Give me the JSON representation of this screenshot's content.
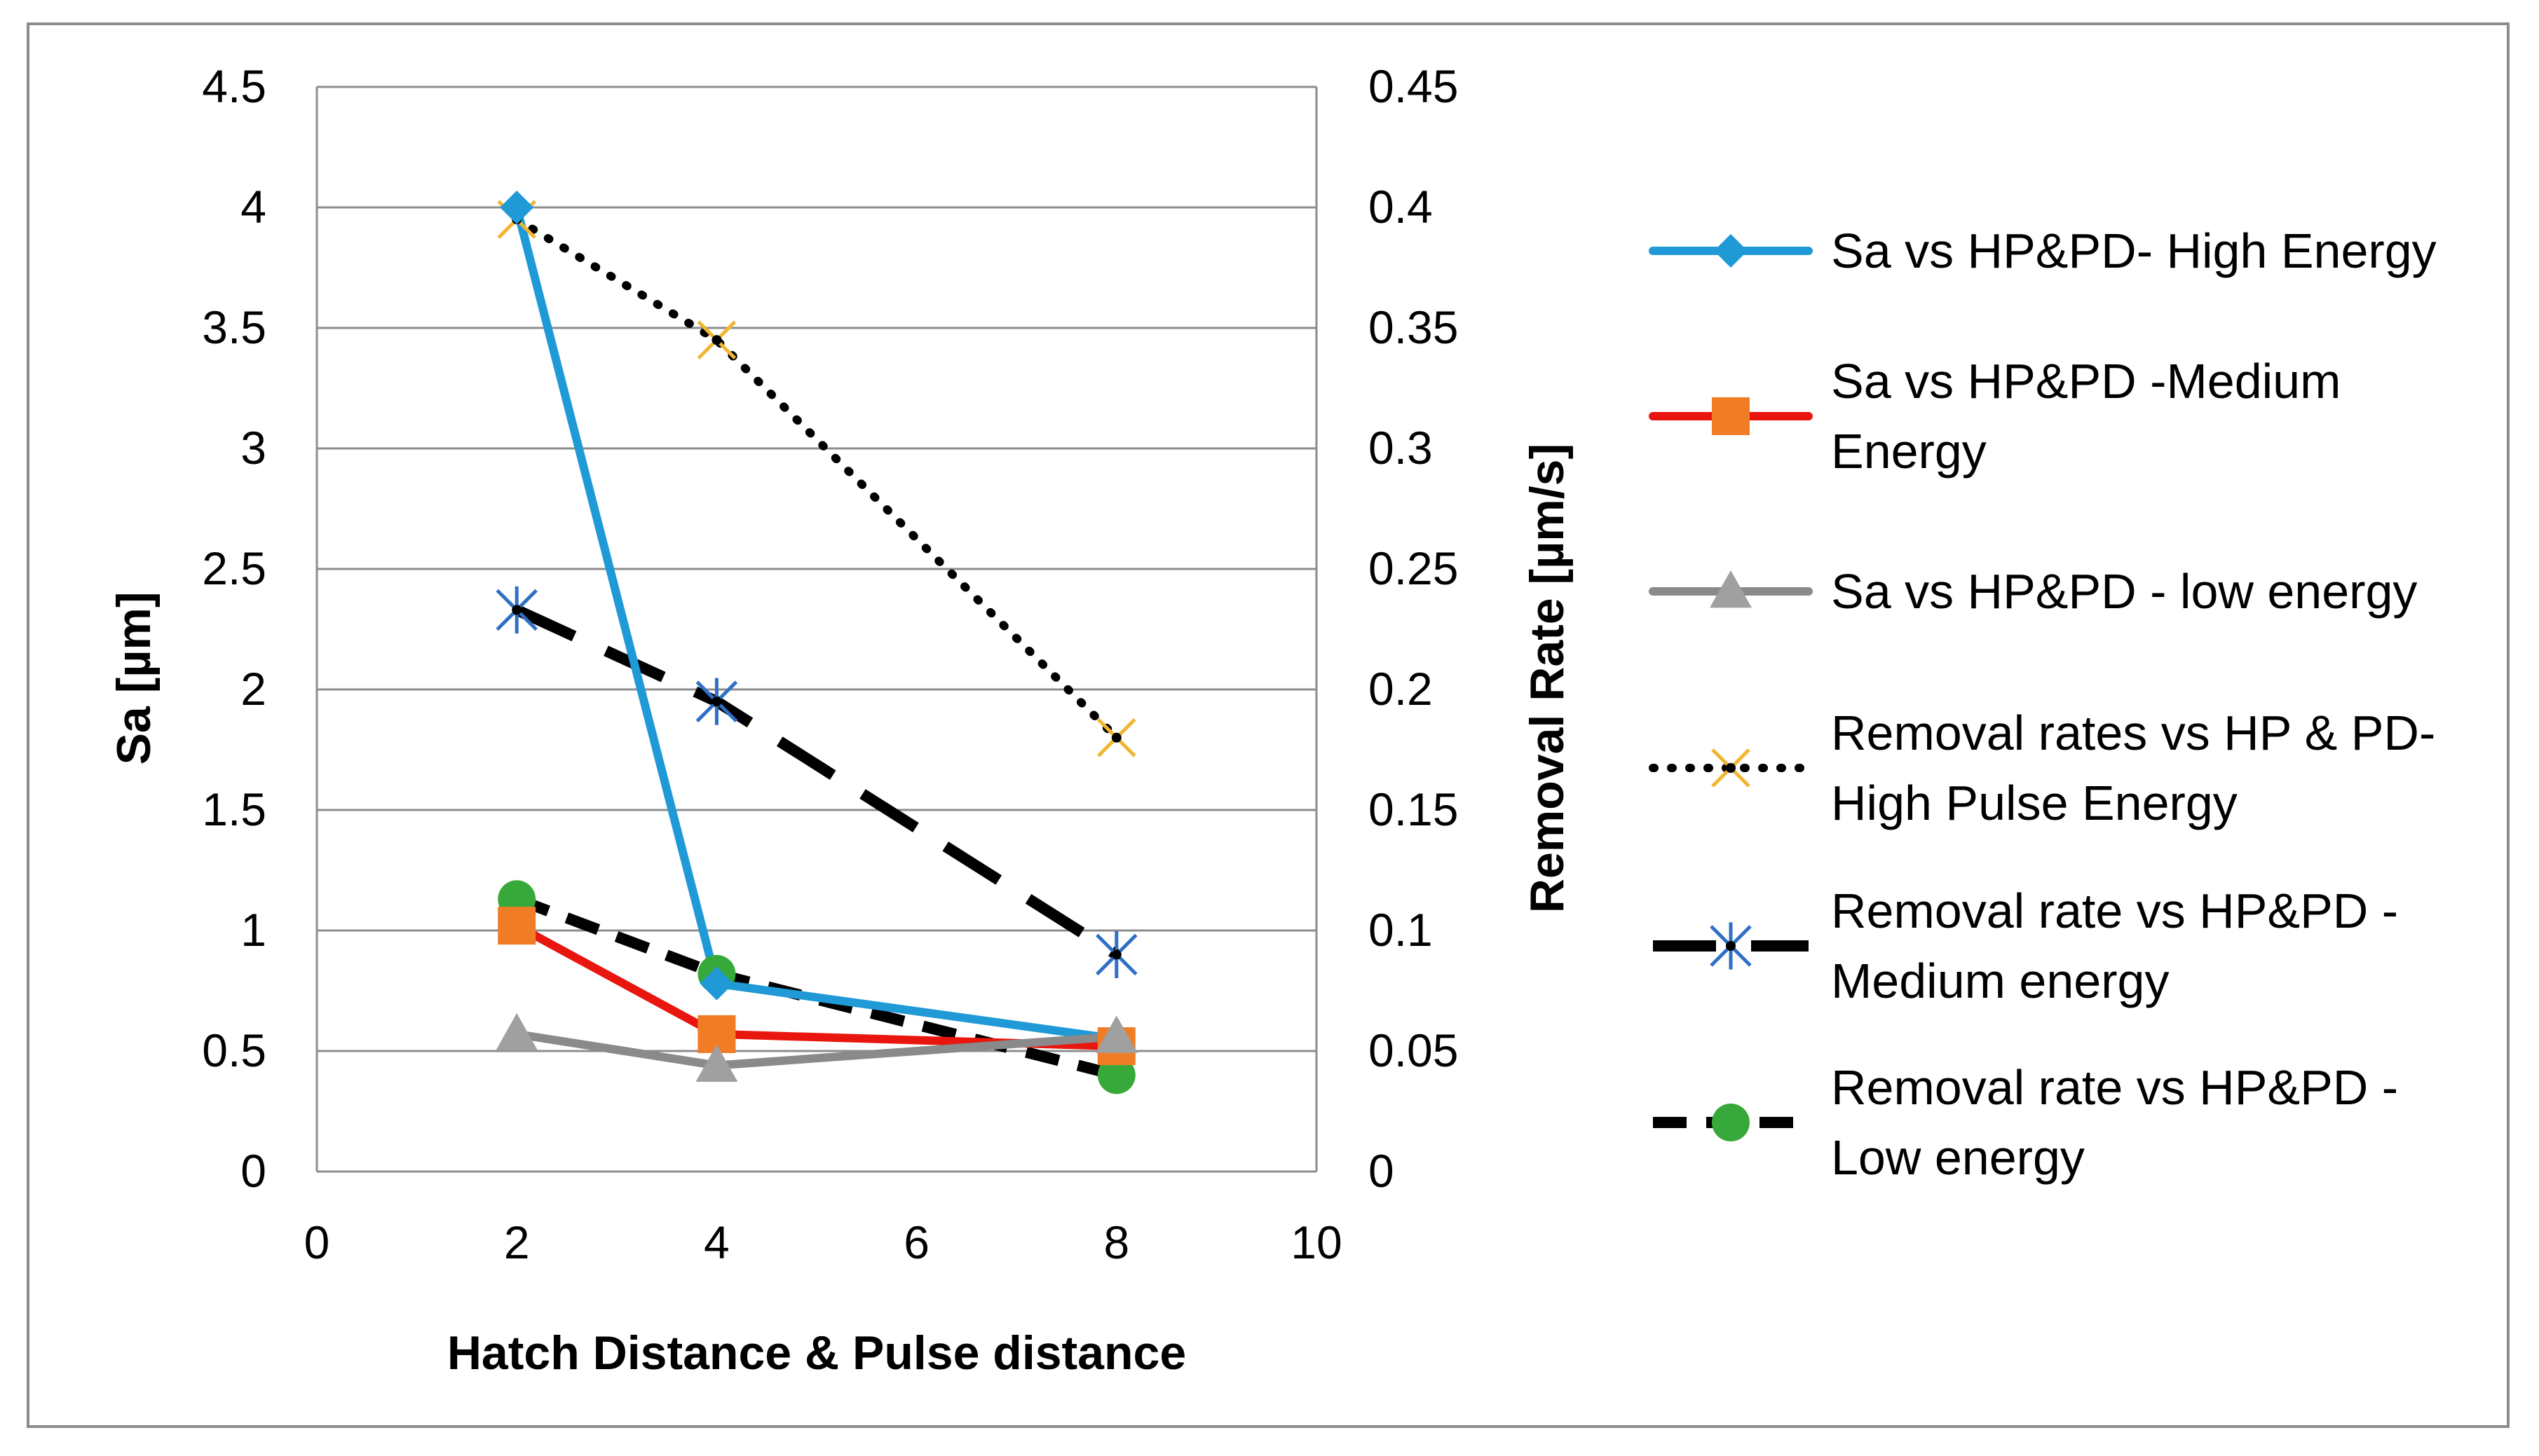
{
  "chart_data": {
    "type": "line",
    "title": "",
    "xlabel": "Hatch Distance & Pulse distance",
    "ylabel": "Sa [µm]",
    "y2label": "Removal Rate [µm/s]",
    "xlim": [
      0,
      10
    ],
    "ylim": [
      0,
      4.5
    ],
    "y2lim": [
      0,
      0.45
    ],
    "x_ticks": [
      "0",
      "2",
      "4",
      "6",
      "8",
      "10"
    ],
    "y_ticks": [
      "0",
      "0.5",
      "1",
      "1.5",
      "2",
      "2.5",
      "3",
      "3.5",
      "4",
      "4.5"
    ],
    "y2_ticks": [
      "0",
      "0.05",
      "0.1",
      "0.15",
      "0.2",
      "0.25",
      "0.3",
      "0.35",
      "0.4",
      "0.45"
    ],
    "grid": true,
    "legend_position": "right",
    "series": [
      {
        "name": "Sa vs HP&PD- High Energy",
        "legend_lines": [
          "Sa vs HP&PD- High Energy"
        ],
        "axis": "primary",
        "x": [
          2,
          4,
          8
        ],
        "values": [
          4.0,
          0.78,
          0.55
        ],
        "color": "#1f9ad6",
        "line_style": "solid",
        "marker": "diamond",
        "marker_color": "#1f9ad6"
      },
      {
        "name": "Sa vs HP&PD -Medium Energy",
        "legend_lines": [
          "Sa vs HP&PD -Medium",
          "Energy"
        ],
        "axis": "primary",
        "x": [
          2,
          4,
          8
        ],
        "values": [
          1.02,
          0.57,
          0.52
        ],
        "color": "#e8160f",
        "line_style": "solid",
        "marker": "square",
        "marker_color": "#f07d26"
      },
      {
        "name": "Sa vs HP&PD - low energy",
        "legend_lines": [
          "Sa vs HP&PD - low energy"
        ],
        "axis": "primary",
        "x": [
          2,
          4,
          8
        ],
        "values": [
          0.57,
          0.44,
          0.56
        ],
        "color": "#8a8a8a",
        "line_style": "solid",
        "marker": "triangle",
        "marker_color": "#a0a0a0"
      },
      {
        "name": "Removal rates vs HP & PD- High Pulse Energy",
        "legend_lines": [
          "Removal rates vs HP & PD-",
          "High Pulse Energy"
        ],
        "axis": "secondary",
        "x": [
          2,
          4,
          8
        ],
        "values": [
          0.395,
          0.345,
          0.18
        ],
        "color": "#000000",
        "line_style": "dotted",
        "marker": "x",
        "marker_color": "#f2b531"
      },
      {
        "name": "Removal rate vs HP&PD - Medium energy",
        "legend_lines": [
          "Removal rate vs HP&PD -",
          "Medium energy"
        ],
        "axis": "secondary",
        "x": [
          2,
          4,
          8
        ],
        "values": [
          0.233,
          0.195,
          0.09
        ],
        "color": "#000000",
        "line_style": "long-dash",
        "marker": "star",
        "marker_color": "#2f6fc4"
      },
      {
        "name": "Removal rate vs HP&PD - Low energy",
        "legend_lines": [
          "Removal rate vs HP&PD -",
          "Low energy"
        ],
        "axis": "secondary",
        "x": [
          2,
          4,
          8
        ],
        "values": [
          0.113,
          0.082,
          0.04
        ],
        "color": "#000000",
        "line_style": "dash",
        "marker": "circle",
        "marker_color": "#37a93a"
      }
    ]
  }
}
